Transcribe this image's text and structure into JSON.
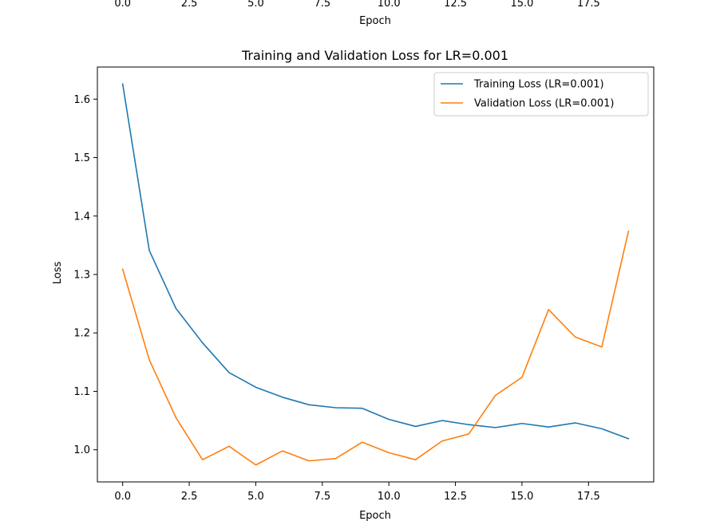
{
  "top_strip": {
    "tick_labels": [
      "0.0",
      "2.5",
      "5.0",
      "7.5",
      "10.0",
      "12.5",
      "15.0",
      "17.5"
    ],
    "xlabel": "Epoch"
  },
  "chart_data": {
    "type": "line",
    "title": "Training and Validation Loss for LR=0.001",
    "xlabel": "Epoch",
    "ylabel": "Loss",
    "xlim": [
      -0.95,
      19.95
    ],
    "ylim": [
      0.945,
      1.655
    ],
    "x_ticks": [
      0,
      2.5,
      5,
      7.5,
      10,
      12.5,
      15,
      17.5
    ],
    "x_tick_labels": [
      "0.0",
      "2.5",
      "5.0",
      "7.5",
      "10.0",
      "12.5",
      "15.0",
      "17.5"
    ],
    "y_ticks": [
      1.0,
      1.1,
      1.2,
      1.3,
      1.4,
      1.5,
      1.6
    ],
    "y_tick_labels": [
      "1.0",
      "1.1",
      "1.2",
      "1.3",
      "1.4",
      "1.5",
      "1.6"
    ],
    "grid": false,
    "legend_position": "top-right",
    "x": [
      0,
      1,
      2,
      3,
      4,
      5,
      6,
      7,
      8,
      9,
      10,
      11,
      12,
      13,
      14,
      15,
      16,
      17,
      18,
      19
    ],
    "series": [
      {
        "name": "Training Loss (LR=0.001)",
        "color": "#1f77b4",
        "values": [
          1.626,
          1.341,
          1.242,
          1.183,
          1.132,
          1.107,
          1.09,
          1.077,
          1.072,
          1.071,
          1.052,
          1.04,
          1.05,
          1.043,
          1.038,
          1.045,
          1.039,
          1.046,
          1.036,
          1.019
        ]
      },
      {
        "name": "Validation Loss (LR=0.001)",
        "color": "#ff7f0e",
        "values": [
          1.309,
          1.154,
          1.055,
          0.983,
          1.006,
          0.974,
          0.998,
          0.981,
          0.985,
          1.013,
          0.995,
          0.983,
          1.015,
          1.027,
          1.093,
          1.124,
          1.24,
          1.193,
          1.176,
          1.374
        ]
      }
    ]
  }
}
